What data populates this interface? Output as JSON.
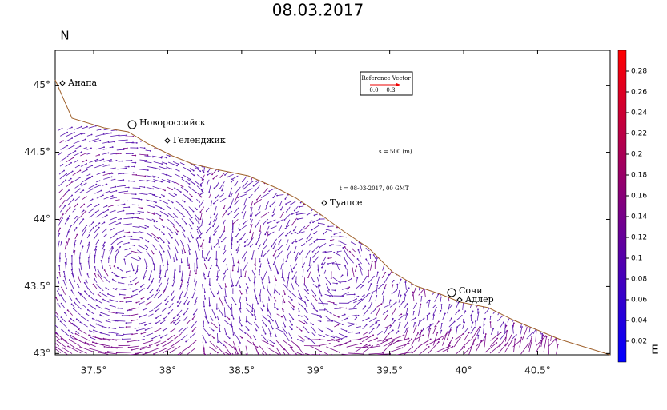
{
  "map": {
    "title": "08.03.2017",
    "axis_label_y": "N",
    "axis_label_x": "E",
    "xlim": [
      37.24,
      40.99
    ],
    "ylim": [
      42.99,
      45.26
    ],
    "xticks": [
      {
        "value": 37.5,
        "label": "37.5°"
      },
      {
        "value": 38,
        "label": "38°"
      },
      {
        "value": 38.5,
        "label": "38.5°"
      },
      {
        "value": 39,
        "label": "39°"
      },
      {
        "value": 39.5,
        "label": "39.5°"
      },
      {
        "value": 40,
        "label": "40°"
      },
      {
        "value": 40.5,
        "label": "40.5°"
      }
    ],
    "yticks": [
      {
        "value": 43,
        "label": "43°"
      },
      {
        "value": 43.5,
        "label": "43.5°"
      },
      {
        "value": 44,
        "label": "44°"
      },
      {
        "value": 44.5,
        "label": "44.5°"
      },
      {
        "value": 45,
        "label": "45°"
      }
    ],
    "cities": [
      "Анапа",
      "Новороссийск",
      "Геленджик",
      "Туапсе",
      "Сочи",
      "Адлер"
    ],
    "annotations": [
      "s = 500 (m)",
      "t = 08-03-2017, 00 GMT"
    ],
    "reference": {
      "title": "Reference Vector",
      "min": "0.0",
      "max": "0.3"
    },
    "colorbar": {
      "lim": [
        0,
        0.3
      ],
      "ticks": [
        0.02,
        0.04,
        0.06,
        0.08,
        0.1,
        0.12,
        0.14,
        0.16,
        0.18,
        0.2,
        0.22,
        0.24,
        0.26,
        0.28
      ]
    }
  }
}
